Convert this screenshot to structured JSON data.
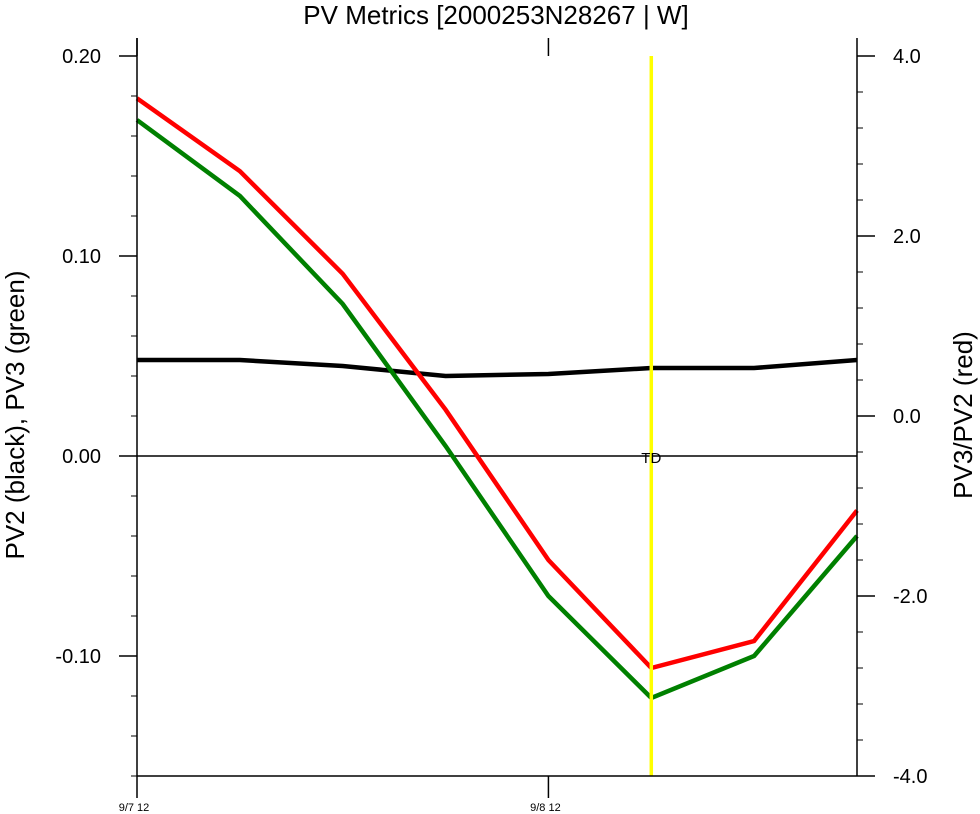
{
  "chart_data": {
    "type": "line",
    "title": "PV Metrics [2000253N28267 | W]",
    "ylabel_left": "PV2 (black), PV3 (green)",
    "ylabel_right": "PV3/PV2 (red)",
    "x": [
      0,
      1,
      2,
      3,
      4,
      5,
      6,
      7
    ],
    "xlim": [
      0,
      7
    ],
    "x_ticks": [
      {
        "x": 0,
        "label": "9/7 12"
      },
      {
        "x": 4,
        "label": "9/8 12"
      }
    ],
    "ylim_left": [
      -0.16,
      0.2
    ],
    "yticks_left": [
      0.2,
      0.1,
      0.0,
      -0.1
    ],
    "yticks_left_labels": [
      "0.20",
      "0.10",
      "0.00",
      "-0.10"
    ],
    "ylim_right": [
      -4.0,
      4.0
    ],
    "yticks_right": [
      4.0,
      2.0,
      0.0,
      -2.0,
      -4.0
    ],
    "yticks_right_labels": [
      "4.0",
      "2.0",
      "0.0",
      "-2.0",
      "-4.0"
    ],
    "series": [
      {
        "axis": "left",
        "color": "#000000",
        "values": [
          0.048,
          0.048,
          0.045,
          0.04,
          0.041,
          0.044,
          0.044,
          0.048
        ]
      },
      {
        "axis": "left",
        "color": "#008000",
        "values": [
          0.168,
          0.13,
          0.076,
          0.005,
          -0.07,
          -0.121,
          -0.1,
          -0.04
        ]
      },
      {
        "axis": "right",
        "color": "#ff0000",
        "values": [
          3.53,
          2.72,
          1.58,
          0.07,
          -1.6,
          -2.8,
          -2.5,
          -1.05
        ]
      }
    ],
    "zero_line": {
      "axis": "left",
      "value": 0.0,
      "color": "#000000"
    },
    "vertical_marker": {
      "x": 5,
      "color": "#ffff00",
      "label": "TD",
      "label_y_left": 0.0
    }
  }
}
